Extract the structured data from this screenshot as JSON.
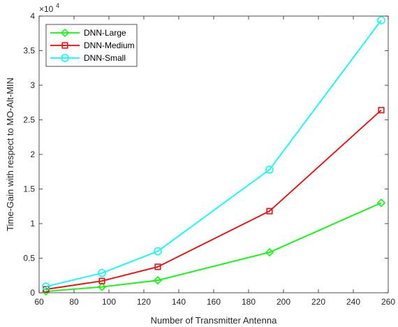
{
  "chart_data": {
    "type": "line",
    "xlabel": "Number of Transmitter Antenna",
    "ylabel": "Time-Gain with respect to MO-Alt-MIN",
    "xlim": [
      60,
      260
    ],
    "ylim": [
      0,
      4
    ],
    "x_ticks": [
      "60",
      "80",
      "100",
      "120",
      "140",
      "160",
      "180",
      "200",
      "220",
      "240",
      "260"
    ],
    "y_ticks": [
      "0",
      "0.5",
      "1",
      "1.5",
      "2",
      "2.5",
      "3",
      "3.5",
      "4"
    ],
    "y_multiplier_base": "×10",
    "y_multiplier_exp": "4",
    "grid": false,
    "legend_position": "top-left",
    "x": [
      64,
      96,
      128,
      192,
      256
    ],
    "series": [
      {
        "name": "DNN-Large",
        "color": "#00ff00",
        "marker": "diamond",
        "values": [
          0.02,
          0.085,
          0.18,
          0.585,
          1.3
        ]
      },
      {
        "name": "DNN-Medium",
        "color": "#ff0000",
        "marker": "square",
        "values": [
          0.05,
          0.17,
          0.375,
          1.18,
          2.64
        ]
      },
      {
        "name": "DNN-Small",
        "color": "#00ffff",
        "marker": "circle",
        "values": [
          0.09,
          0.285,
          0.6,
          1.78,
          3.94
        ]
      }
    ]
  }
}
